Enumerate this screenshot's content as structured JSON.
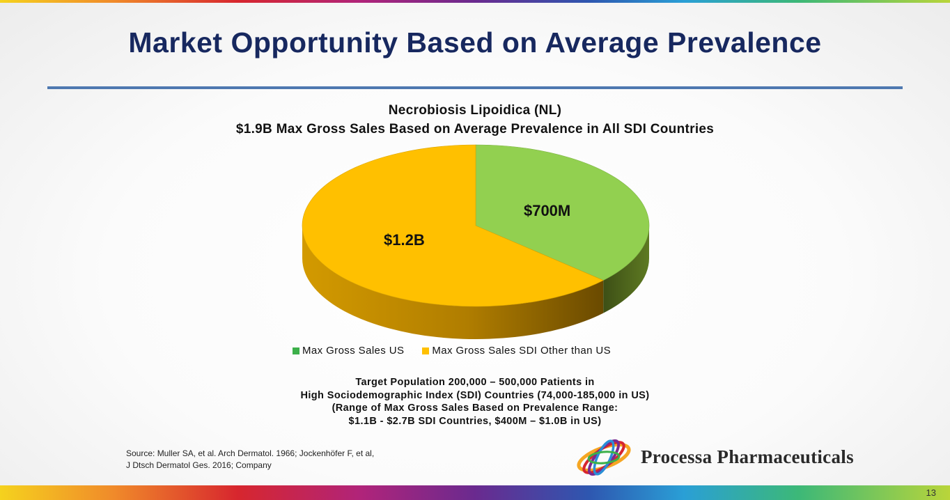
{
  "slide": {
    "title": "Market Opportunity Based on Average Prevalence",
    "page_number": "13",
    "notes": [
      "Target Population 200,000 – 500,000 Patients in",
      "High Sociodemographic Index (SDI) Countries (74,000-185,000 in US)",
      "(Range of Max Gross Sales Based on Prevalence Range:",
      "$1.1B - $2.7B SDI Countries, $400M – $1.0B in US)"
    ],
    "source": [
      "Source: Muller SA, et al. Arch Dermatol. 1966; Jockenhöfer F, et al,",
      "J Dtsch Dermatol Ges. 2016; Company"
    ],
    "company": "Processa Pharmaceuticals"
  },
  "chart_data": {
    "type": "pie",
    "title": "Necrobiosis Lipoidica (NL)",
    "subtitle": "$1.9B Max Gross Sales Based on Average Prevalence in All SDI Countries",
    "legend_position": "bottom",
    "slices": [
      {
        "name": "Max Gross Sales US",
        "value": 700,
        "label": "$700M",
        "color": "#92d050"
      },
      {
        "name": "Max Gross Sales SDI Other than US",
        "value": 1200,
        "label": "$1.2B",
        "color": "#ffc000"
      }
    ]
  }
}
